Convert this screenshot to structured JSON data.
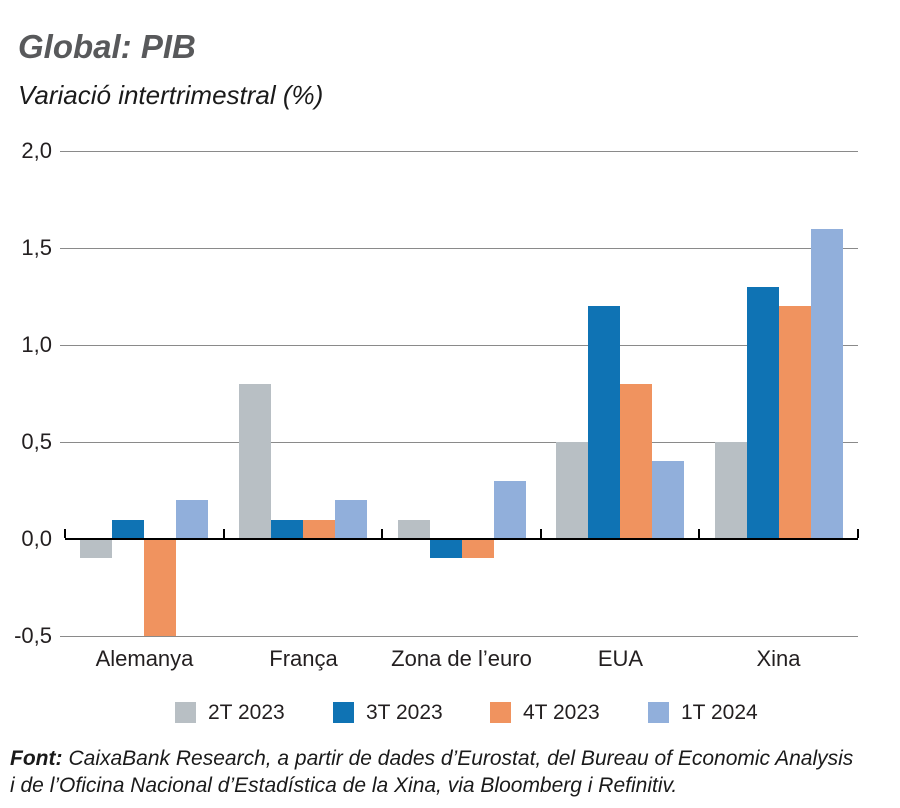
{
  "header": {
    "title": "Global: PIB",
    "subtitle": "Variació intertrimestral (%)"
  },
  "chart_data": {
    "type": "bar",
    "title": "Global: PIB",
    "subtitle": "Variació intertrimestral (%)",
    "categories": [
      "Alemanya",
      "França",
      "Zona de l’euro",
      "EUA",
      "Xina"
    ],
    "series": [
      {
        "name": "2T 2023",
        "color": "#b8bfc4",
        "values": [
          -0.1,
          0.8,
          0.1,
          0.5,
          0.5
        ]
      },
      {
        "name": "3T 2023",
        "color": "#0f73b4",
        "values": [
          0.1,
          0.1,
          -0.1,
          1.2,
          1.3
        ]
      },
      {
        "name": "4T 2023",
        "color": "#f0935f",
        "values": [
          -0.5,
          0.1,
          -0.1,
          0.8,
          1.2
        ]
      },
      {
        "name": "1T 2024",
        "color": "#91afdb",
        "values": [
          0.2,
          0.2,
          0.3,
          0.4,
          1.6
        ]
      }
    ],
    "ylim": [
      -0.5,
      2.0
    ],
    "yticks": [
      2.0,
      1.5,
      1.0,
      0.5,
      0.0,
      -0.5
    ],
    "ytick_labels": [
      "2,0",
      "1,5",
      "1,0",
      "0,5",
      "0,0",
      "-0,5"
    ],
    "xlabel": "",
    "ylabel": "",
    "grid": true,
    "legend_position": "bottom"
  },
  "footer": {
    "source_label": "Font:",
    "source_line1": "CaixaBank Research, a partir de dades d’Eurostat, del Bureau of Economic Analysis",
    "source_line2": "i de l’Oficina Nacional d’Estadística de la Xina, via Bloomberg i Refinitiv."
  }
}
